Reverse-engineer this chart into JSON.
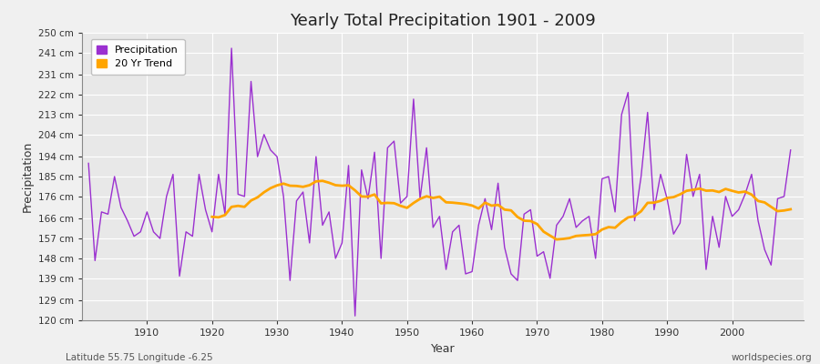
{
  "title": "Yearly Total Precipitation 1901 - 2009",
  "xlabel": "Year",
  "ylabel": "Precipitation",
  "subtitle_left": "Latitude 55.75 Longitude -6.25",
  "subtitle_right": "worldspecies.org",
  "start_year": 1901,
  "ylim": [
    120,
    250
  ],
  "yticks": [
    120,
    129,
    139,
    148,
    157,
    166,
    176,
    185,
    194,
    204,
    213,
    222,
    231,
    241,
    250
  ],
  "ytick_labels": [
    "120 cm",
    "129 cm",
    "139 cm",
    "148 cm",
    "157 cm",
    "166 cm",
    "176 cm",
    "185 cm",
    "194 cm",
    "204 cm",
    "213 cm",
    "222 cm",
    "231 cm",
    "241 cm",
    "250 cm"
  ],
  "precip_color": "#9B30D0",
  "trend_color": "#FFA500",
  "bg_color": "#F0F0F0",
  "plot_bg_color": "#E8E8E8",
  "grid_color": "#FFFFFF",
  "legend_entries": [
    "Precipitation",
    "20 Yr Trend"
  ],
  "precipitation": [
    191,
    147,
    169,
    168,
    185,
    171,
    165,
    158,
    160,
    169,
    160,
    157,
    176,
    186,
    140,
    160,
    158,
    186,
    170,
    160,
    186,
    168,
    243,
    177,
    176,
    228,
    194,
    204,
    197,
    194,
    176,
    138,
    174,
    178,
    155,
    194,
    163,
    169,
    148,
    155,
    190,
    122,
    188,
    175,
    196,
    148,
    198,
    201,
    173,
    176,
    220,
    175,
    198,
    162,
    167,
    143,
    160,
    163,
    141,
    142,
    163,
    175,
    161,
    182,
    153,
    141,
    138,
    168,
    170,
    149,
    151,
    139,
    163,
    167,
    175,
    162,
    165,
    167,
    148,
    184,
    185,
    169,
    213,
    223,
    165,
    185,
    214,
    170,
    186,
    175,
    159,
    164,
    195,
    176,
    186,
    143,
    167,
    153,
    176,
    167,
    170,
    177,
    186,
    165,
    152,
    145,
    175,
    176,
    197
  ]
}
